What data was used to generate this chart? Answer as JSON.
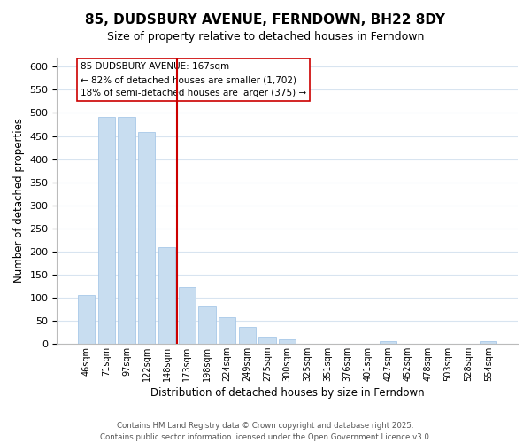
{
  "title": "85, DUDSBURY AVENUE, FERNDOWN, BH22 8DY",
  "subtitle": "Size of property relative to detached houses in Ferndown",
  "xlabel": "Distribution of detached houses by size in Ferndown",
  "ylabel": "Number of detached properties",
  "bar_labels": [
    "46sqm",
    "71sqm",
    "97sqm",
    "122sqm",
    "148sqm",
    "173sqm",
    "198sqm",
    "224sqm",
    "249sqm",
    "275sqm",
    "300sqm",
    "325sqm",
    "351sqm",
    "376sqm",
    "401sqm",
    "427sqm",
    "452sqm",
    "478sqm",
    "503sqm",
    "528sqm",
    "554sqm"
  ],
  "bar_values": [
    105,
    492,
    492,
    458,
    208,
    122,
    82,
    58,
    37,
    15,
    10,
    0,
    0,
    0,
    0,
    5,
    0,
    0,
    0,
    0,
    5
  ],
  "bar_color": "#c8ddf0",
  "bar_edge_color": "#a8c8e8",
  "vline_x": 4.5,
  "vline_color": "#cc0000",
  "annotation_lines": [
    "85 DUDSBURY AVENUE: 167sqm",
    "← 82% of detached houses are smaller (1,702)",
    "18% of semi-detached houses are larger (375) →"
  ],
  "ylim": [
    0,
    620
  ],
  "yticks": [
    0,
    50,
    100,
    150,
    200,
    250,
    300,
    350,
    400,
    450,
    500,
    550,
    600
  ],
  "footer_line1": "Contains HM Land Registry data © Crown copyright and database right 2025.",
  "footer_line2": "Contains public sector information licensed under the Open Government Licence v3.0.",
  "grid_color": "#d8e4f0"
}
